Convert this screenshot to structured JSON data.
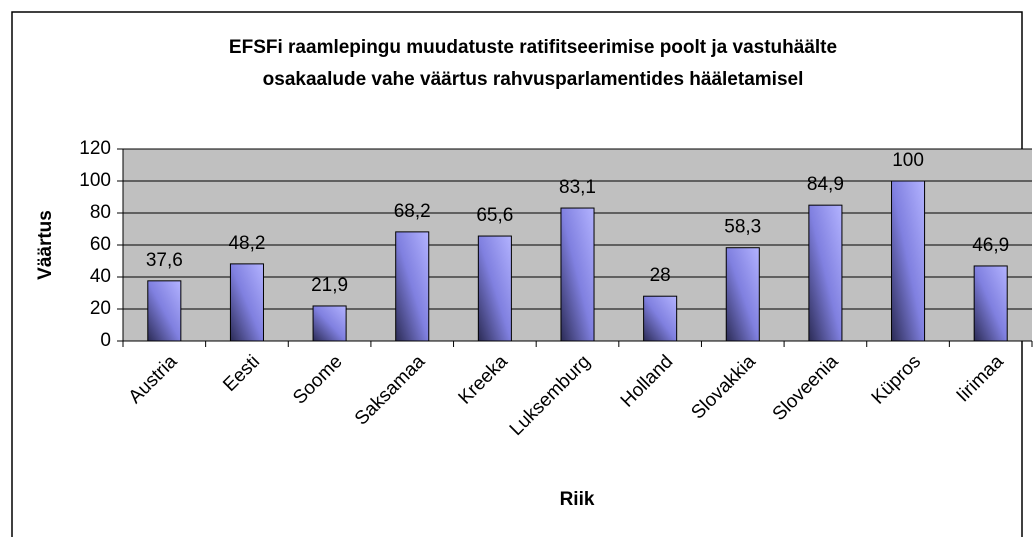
{
  "chart_data": {
    "type": "bar",
    "title": [
      "EFSFi raamlepingu muudatuste ratifitseerimise poolt ja vastuhäälte",
      "osakaalude vahe väärtus rahvusparlamentides hääletamisel"
    ],
    "x_label": "Riik",
    "y_label": "Väärtus",
    "categories": [
      "Austria",
      "Eesti",
      "Soome",
      "Saksamaa",
      "Kreeka",
      "Luksemburg",
      "Holland",
      "Slovakkia",
      "Sloveenia",
      "Küpros",
      "Iirimaa"
    ],
    "values": [
      37.6,
      48.2,
      21.9,
      68.2,
      65.6,
      83.1,
      28,
      58.3,
      84.9,
      100,
      46.9
    ],
    "value_labels": [
      "37,6",
      "48,2",
      "21,9",
      "68,2",
      "65,6",
      "83,1",
      "28",
      "58,3",
      "84,9",
      "100",
      "46,9"
    ],
    "color": "#9999ff",
    "ylim": [
      0,
      120
    ],
    "yticks": [
      0,
      20,
      40,
      60,
      80,
      100,
      120
    ],
    "grid": true
  }
}
